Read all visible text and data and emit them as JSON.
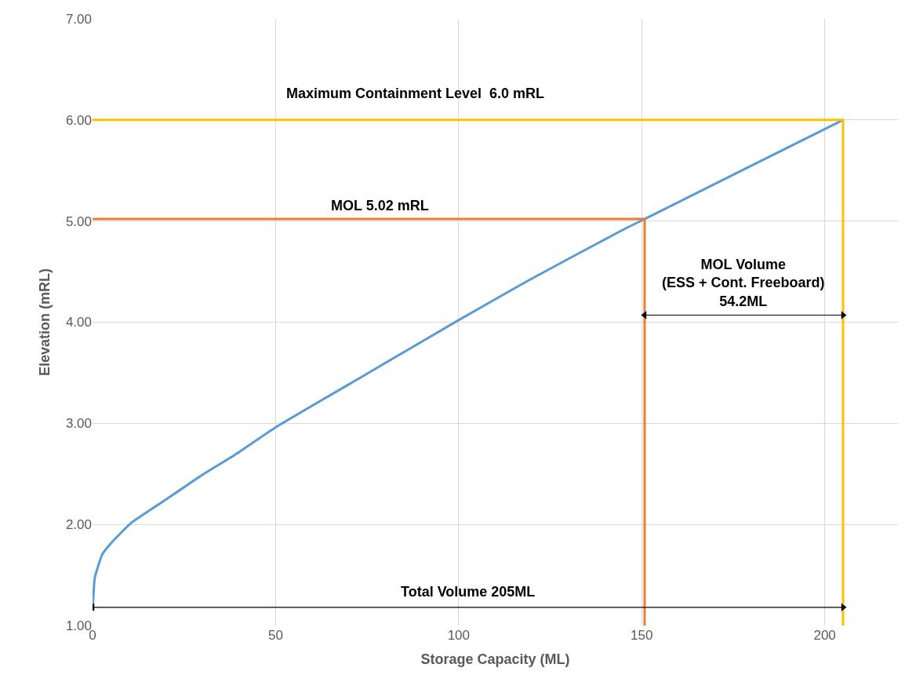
{
  "chart_data": {
    "type": "line",
    "xlabel": "Storage Capacity (ML)",
    "ylabel": "Elevation (mRL)",
    "series": [
      {
        "color": "#5b9bd5",
        "x": [
          0,
          0.07,
          0.6,
          2.6,
          4.7,
          10.4,
          19,
          30.4,
          39,
          50,
          74.5,
          100,
          118.9,
          145.2,
          150.8,
          177.9,
          205
        ],
        "values": [
          1.19,
          1.2,
          1.47,
          1.7,
          1.8,
          2.01,
          2.22,
          2.5,
          2.69,
          2.96,
          3.48,
          4.02,
          4.41,
          4.92,
          5.02,
          5.51,
          6.0
        ]
      },
      {
        "color": "#ed7d31",
        "x": [
          0,
          150.8,
          150.8
        ],
        "values": [
          5.02,
          5.02,
          1.0
        ]
      },
      {
        "color": "#ffc000",
        "x": [
          0,
          205,
          205
        ],
        "values": [
          6.0,
          6.0,
          1.0
        ]
      },
      {
        "color": "#000000",
        "marker": "triangle",
        "x": [
          0,
          205
        ],
        "values": [
          1.18,
          1.18
        ]
      },
      {
        "color": "#000000",
        "marker": "triangle",
        "x": [
          150.8,
          205
        ],
        "values": [
          4.07,
          4.07
        ]
      }
    ],
    "annotations": [
      "Maximum Containment Level  6.0 mRL",
      "MOL 5.02 mRL",
      "MOL Volume\n(ESS + Cont. Freeboard)\n54.2ML",
      "Total Volume 205ML"
    ],
    "xlim": [
      0,
      220
    ],
    "xticks": [
      0,
      50,
      100,
      150,
      200
    ],
    "ylim": [
      1,
      7
    ],
    "yticks": [
      {
        "value": 1,
        "label": "1.00"
      },
      {
        "value": 2,
        "label": "2.00"
      },
      {
        "value": 3,
        "label": "3.00"
      },
      {
        "value": 4,
        "label": "4.00"
      },
      {
        "value": 5,
        "label": "5.00"
      },
      {
        "value": 6,
        "label": "6.00"
      },
      {
        "value": 7,
        "label": "7.00"
      }
    ],
    "grid": true,
    "marker": "none",
    "line_style": "solid"
  }
}
